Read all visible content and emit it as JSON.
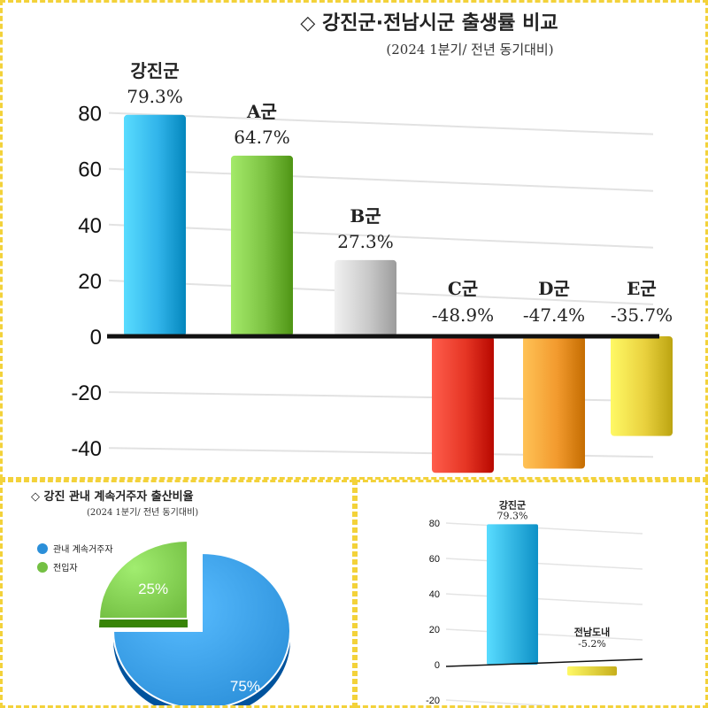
{
  "colors": {
    "border": "#f3d23a",
    "gangjin": "#31b4ea",
    "a": "#7cc242",
    "b": "#c9c9c9",
    "c": "#e53524",
    "d": "#f29a2e",
    "e": "#e9d13e",
    "jeonnam": "#e9d13e",
    "pie_resident": "#2b8fd9",
    "pie_migrant": "#74c043"
  },
  "chart_data": [
    {
      "type": "bar",
      "title": "◇ 강진군·전남시군 출생률 비교",
      "subtitle": "(2024 1분기/ 전년 동기대비)",
      "categories": [
        "강진군",
        "A군",
        "B군",
        "C군",
        "D군",
        "E군"
      ],
      "values": [
        79.3,
        64.7,
        27.3,
        -48.9,
        -47.4,
        -35.7
      ],
      "value_labels": [
        "79.3%",
        "64.7%",
        "27.3%",
        "-48.9%",
        "-47.4%",
        "-35.7%"
      ],
      "yticks": [
        "80",
        "60",
        "40",
        "20",
        "0",
        "-20",
        "-40"
      ],
      "ylim": [
        -48.9,
        80
      ],
      "grid": true
    },
    {
      "type": "pie",
      "title": "◇ 강진 관내 계속거주자 출산비율",
      "subtitle": "(2024 1분기/ 전년 동기대비)",
      "categories": [
        "관내 계속거주자",
        "전입자"
      ],
      "values": [
        75,
        25
      ],
      "value_labels": [
        "75%",
        "25%"
      ],
      "legend": "top-left"
    },
    {
      "type": "bar",
      "categories": [
        "강진군",
        "전남도내"
      ],
      "values": [
        79.3,
        -5.2
      ],
      "value_labels": [
        "79.3%",
        "-5.2%"
      ],
      "yticks": [
        "80",
        "60",
        "40",
        "20",
        "0",
        "-20"
      ],
      "ylim": [
        -20,
        80
      ],
      "grid": true
    }
  ]
}
